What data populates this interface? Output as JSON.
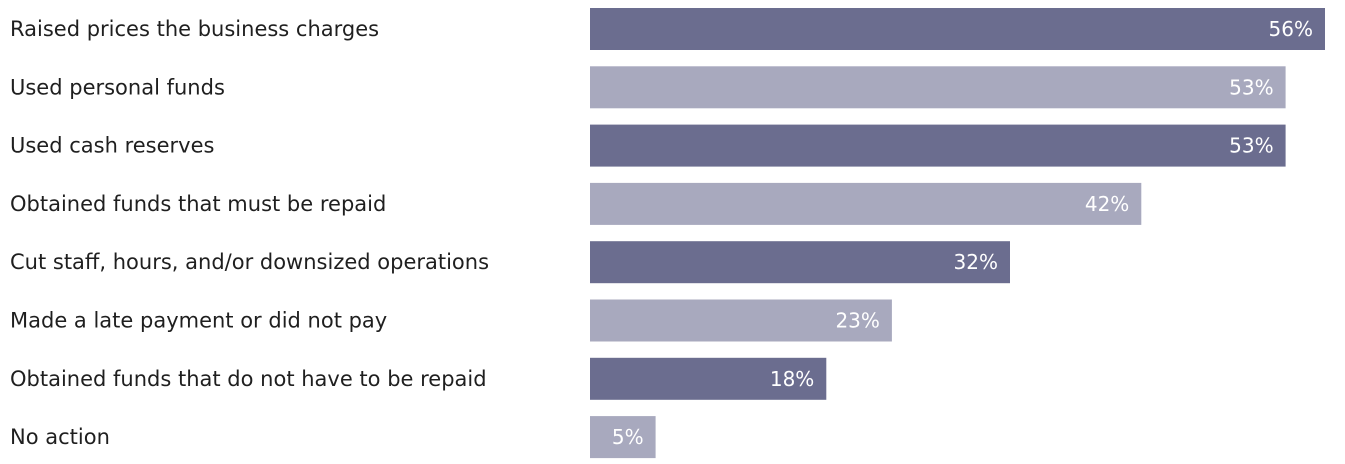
{
  "chart_data": {
    "type": "bar",
    "orientation": "horizontal",
    "categories": [
      "Raised prices the business charges",
      "Used personal funds",
      "Used cash reserves",
      "Obtained funds that must be repaid",
      "Cut staff, hours, and/or downsized operations",
      "Made a late payment or did not pay",
      "Obtained funds that do not have to be repaid",
      "No action"
    ],
    "values": [
      56,
      53,
      53,
      42,
      32,
      23,
      18,
      5
    ],
    "value_labels": [
      "56%",
      "53%",
      "53%",
      "42%",
      "32%",
      "23%",
      "18%",
      "5%"
    ],
    "unit": "%",
    "xlim": [
      0,
      56
    ],
    "colors": [
      "#6b6d8f",
      "#a8a9be"
    ],
    "title": "",
    "xlabel": "",
    "ylabel": "",
    "grid": false,
    "legend": "none"
  }
}
